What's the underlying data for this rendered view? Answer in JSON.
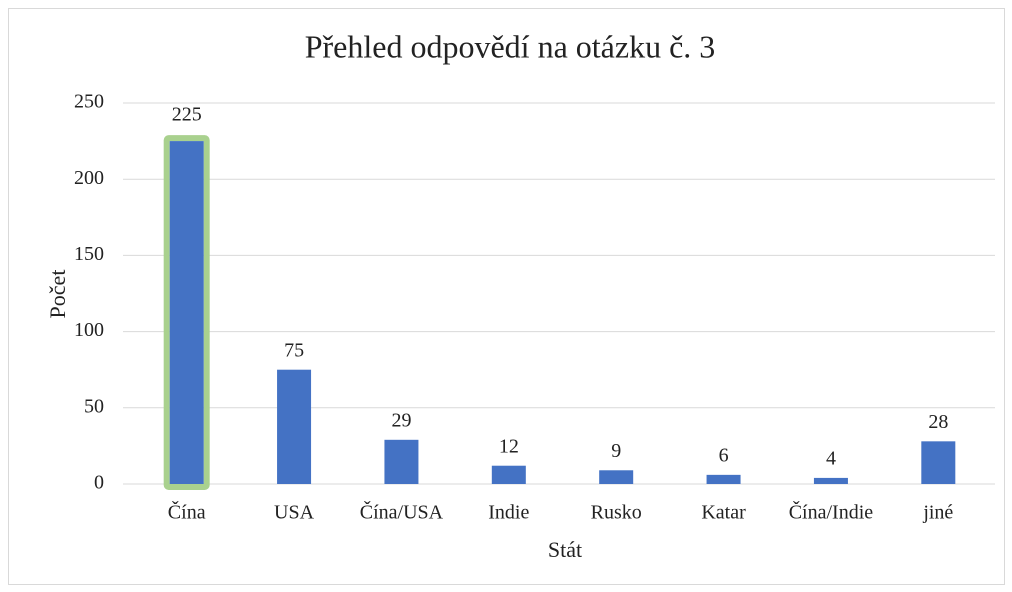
{
  "chart_data": {
    "type": "bar",
    "title": "Přehled odpovědí na otázku č. 3",
    "x_label": "Stát",
    "y_label": "Počet",
    "categories": [
      "Čína",
      "USA",
      "Čína/USA",
      "Indie",
      "Rusko",
      "Katar",
      "Čína/Indie",
      "jiné"
    ],
    "values": [
      225,
      75,
      29,
      12,
      9,
      6,
      4,
      28
    ],
    "color": "#4472c4",
    "edge_colors": [
      "#a9d18e",
      null,
      null,
      null,
      null,
      null,
      null,
      null
    ],
    "ylim": [
      0,
      250
    ],
    "yticks": [
      0,
      50,
      100,
      150,
      200,
      250
    ],
    "grid": true
  }
}
